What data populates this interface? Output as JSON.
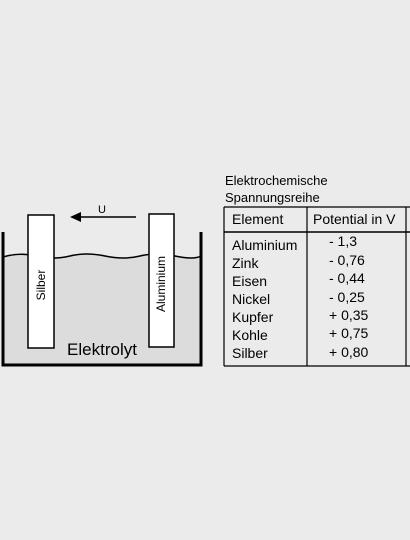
{
  "cell": {
    "electrode_left": "Silber",
    "electrode_right": "Aluminium",
    "voltage_label": "U",
    "electrolyte_label": "Elektrolyt"
  },
  "table": {
    "title_line1": "Elektrochemische",
    "title_line2": "Spannungsreihe",
    "col_element": "Element",
    "col_potential": "Potential in V",
    "rows": [
      {
        "element": "Aluminium",
        "potential": "- 1,3"
      },
      {
        "element": "Zink",
        "potential": "- 0,76"
      },
      {
        "element": "Eisen",
        "potential": "- 0,44"
      },
      {
        "element": "Nickel",
        "potential": "- 0,25"
      },
      {
        "element": "Kupfer",
        "potential": "+ 0,35"
      },
      {
        "element": "Kohle",
        "potential": "+ 0,75"
      },
      {
        "element": "Silber",
        "potential": "+ 0,80"
      }
    ]
  },
  "colors": {
    "background": "#ebebeb",
    "electrolyte": "#dcdcdc",
    "electrode": "#ffffff",
    "line": "#000000"
  }
}
